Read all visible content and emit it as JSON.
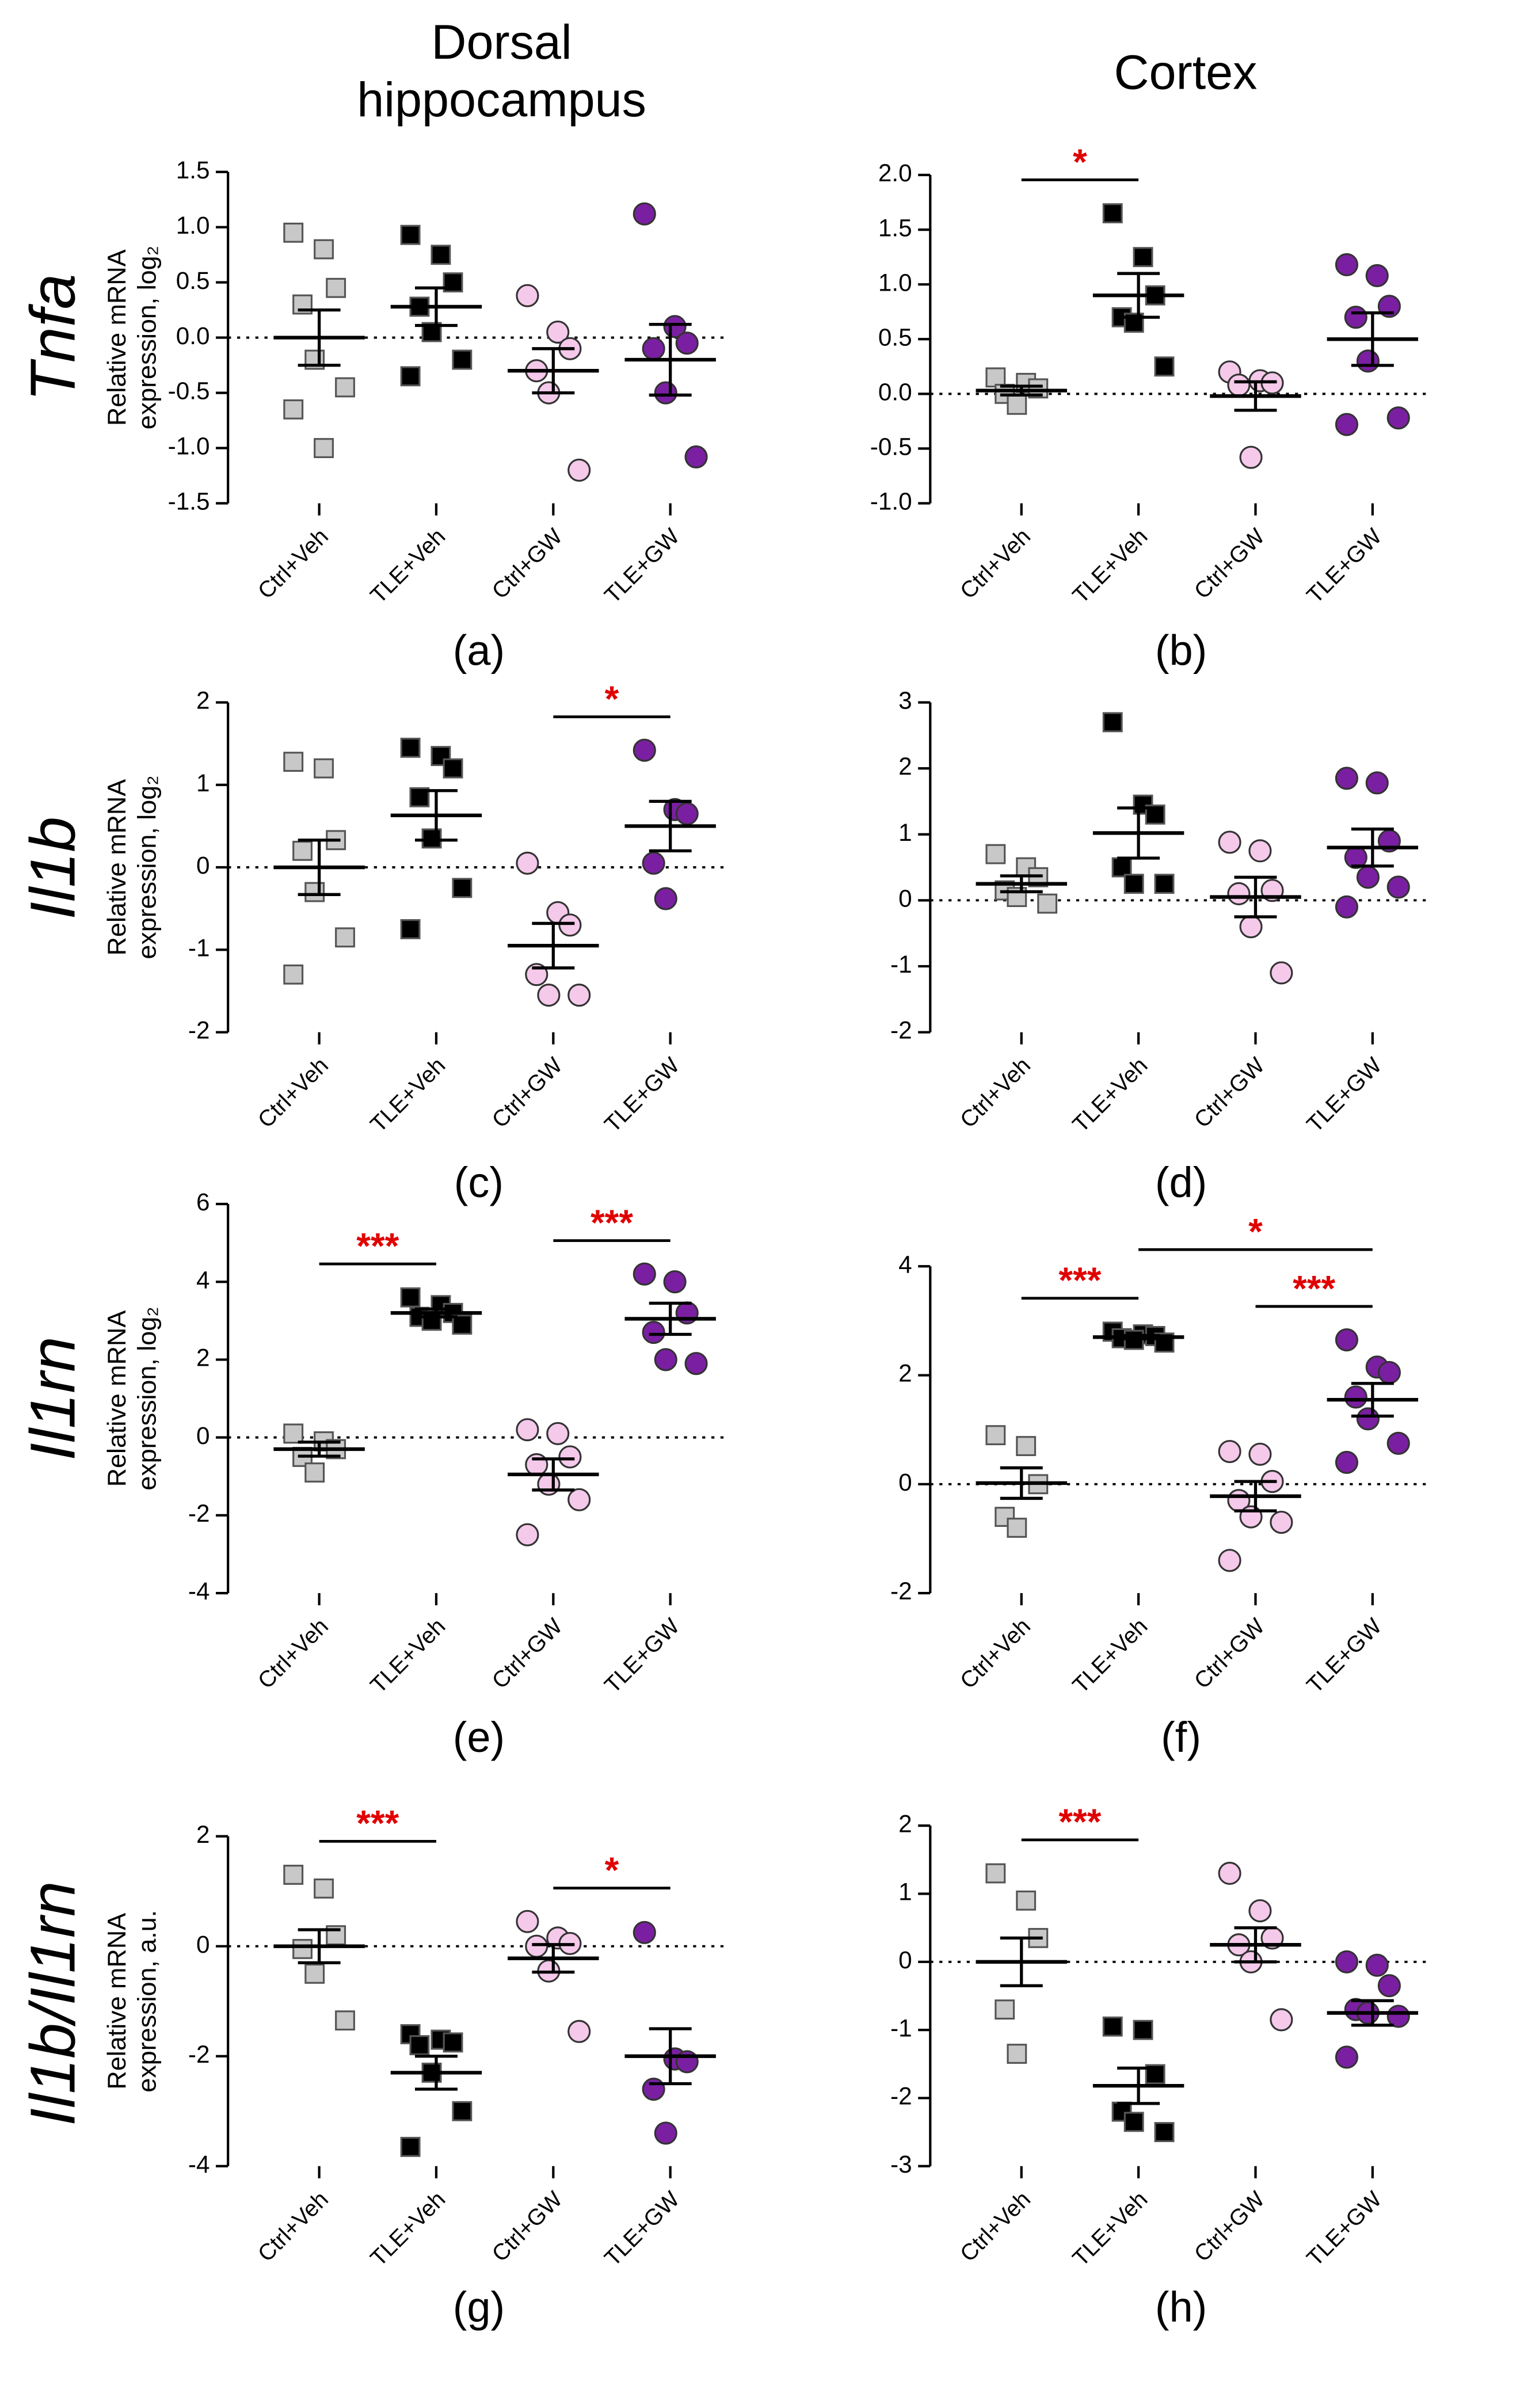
{
  "column_titles": [
    [
      "Dorsal",
      "hippocampus"
    ],
    [
      "Cortex"
    ]
  ],
  "row_labels": [
    "Tnfa",
    "Il1b",
    "Il1rn",
    "Il1b/Il1rn"
  ],
  "chart_data": [
    {
      "type": "dotplot",
      "panel_label": "(a)",
      "ylabel": [
        "Relative mRNA",
        "expression, log₂"
      ],
      "ylim": [
        -1.5,
        1.5
      ],
      "yticks": [
        -1.5,
        {
          "value": -1,
          "label": "-1.0"
        },
        -0.5,
        {
          "value": 0,
          "label": "0.0"
        },
        0.5,
        {
          "value": 1,
          "label": "1.0"
        },
        1.5
      ],
      "hline": 0,
      "series": [
        {
          "name": "Ctrl+Veh",
          "marker": "square",
          "color": "#c8c8c8",
          "values": [
            0.95,
            0.8,
            0.45,
            0.3,
            -0.2,
            -0.45,
            -0.65,
            -1.0
          ],
          "mean": 0,
          "sem": 0.25
        },
        {
          "name": "TLE+Veh",
          "marker": "square",
          "color": "#000000",
          "values": [
            0.93,
            0.75,
            0.5,
            0.28,
            0.05,
            -0.2,
            -0.35
          ],
          "mean": 0.28,
          "sem": 0.17
        },
        {
          "name": "Ctrl+GW",
          "marker": "circle",
          "color": "#f5c9ea",
          "values": [
            0.38,
            0.05,
            -0.1,
            -0.3,
            -0.5,
            -1.2
          ],
          "mean": -0.3,
          "sem": 0.2
        },
        {
          "name": "TLE+GW",
          "marker": "circle",
          "color": "#7b1fa2",
          "values": [
            1.12,
            0.1,
            -0.05,
            -0.1,
            -0.5,
            -1.08
          ],
          "mean": -0.2,
          "sem": 0.32
        }
      ],
      "annotations": []
    },
    {
      "type": "dotplot",
      "panel_label": "(b)",
      "ylim": [
        -1,
        2
      ],
      "yticks": [
        {
          "value": -1,
          "label": "-1.0"
        },
        -0.5,
        {
          "value": 0,
          "label": "0.0"
        },
        0.5,
        {
          "value": 1,
          "label": "1.0"
        },
        1.5,
        {
          "value": 2,
          "label": "2.0"
        }
      ],
      "hline": 0,
      "series": [
        {
          "name": "Ctrl+Veh",
          "marker": "square",
          "color": "#c8c8c8",
          "values": [
            0.15,
            0.1,
            0.05,
            0.0,
            -0.1
          ],
          "mean": 0.03,
          "sem": 0.04
        },
        {
          "name": "TLE+Veh",
          "marker": "square",
          "color": "#000000",
          "values": [
            1.65,
            1.25,
            0.9,
            0.7,
            0.65,
            0.25
          ],
          "mean": 0.9,
          "sem": 0.2
        },
        {
          "name": "Ctrl+GW",
          "marker": "circle",
          "color": "#f5c9ea",
          "values": [
            0.2,
            0.12,
            0.1,
            0.08,
            -0.58
          ],
          "mean": -0.02,
          "sem": 0.13
        },
        {
          "name": "TLE+GW",
          "marker": "circle",
          "color": "#7b1fa2",
          "values": [
            1.18,
            1.08,
            0.8,
            0.7,
            0.3,
            -0.22,
            -0.28
          ],
          "mean": 0.5,
          "sem": 0.24
        }
      ],
      "annotations": [
        {
          "text": "*",
          "from": 0,
          "to": 1
        }
      ]
    },
    {
      "type": "dotplot",
      "panel_label": "(c)",
      "ylabel": [
        "Relative mRNA",
        "expression, log₂"
      ],
      "ylim": [
        -2,
        2
      ],
      "yticks": [
        -2,
        -1,
        0,
        1,
        2
      ],
      "hline": 0,
      "series": [
        {
          "name": "Ctrl+Veh",
          "marker": "square",
          "color": "#c8c8c8",
          "values": [
            1.28,
            1.2,
            0.33,
            0.2,
            -0.3,
            -0.85,
            -1.3
          ],
          "mean": 0,
          "sem": 0.33
        },
        {
          "name": "TLE+Veh",
          "marker": "square",
          "color": "#000000",
          "values": [
            1.45,
            1.35,
            1.2,
            0.85,
            0.35,
            -0.25,
            -0.75
          ],
          "mean": 0.63,
          "sem": 0.3
        },
        {
          "name": "Ctrl+GW",
          "marker": "circle",
          "color": "#f5c9ea",
          "values": [
            0.05,
            -0.55,
            -0.7,
            -1.3,
            -1.55,
            -1.55
          ],
          "mean": -0.95,
          "sem": 0.27
        },
        {
          "name": "TLE+GW",
          "marker": "circle",
          "color": "#7b1fa2",
          "values": [
            1.42,
            0.7,
            0.65,
            0.05,
            -0.38
          ],
          "mean": 0.5,
          "sem": 0.3
        }
      ],
      "annotations": [
        {
          "text": "*",
          "from": 2,
          "to": 3
        }
      ]
    },
    {
      "type": "dotplot",
      "panel_label": "(d)",
      "ylim": [
        -2,
        3
      ],
      "yticks": [
        -2,
        -1,
        0,
        1,
        2,
        3
      ],
      "hline": 0,
      "series": [
        {
          "name": "Ctrl+Veh",
          "marker": "square",
          "color": "#c8c8c8",
          "values": [
            0.7,
            0.5,
            0.35,
            0.15,
            0.05,
            -0.05
          ],
          "mean": 0.25,
          "sem": 0.12
        },
        {
          "name": "TLE+Veh",
          "marker": "square",
          "color": "#000000",
          "values": [
            2.7,
            1.45,
            1.3,
            0.5,
            0.25,
            0.25
          ],
          "mean": 1.02,
          "sem": 0.38
        },
        {
          "name": "Ctrl+GW",
          "marker": "circle",
          "color": "#f5c9ea",
          "values": [
            0.88,
            0.75,
            0.15,
            0.1,
            -0.4,
            -1.1
          ],
          "mean": 0.05,
          "sem": 0.3
        },
        {
          "name": "TLE+GW",
          "marker": "circle",
          "color": "#7b1fa2",
          "values": [
            1.85,
            1.78,
            0.9,
            0.65,
            0.35,
            0.2,
            -0.1
          ],
          "mean": 0.8,
          "sem": 0.28
        }
      ],
      "annotations": []
    },
    {
      "type": "dotplot",
      "panel_label": "(e)",
      "ylabel": [
        "Relative mRNA",
        "expression, log₂"
      ],
      "ylim": [
        -4,
        6
      ],
      "yticks": [
        -4,
        -2,
        0,
        2,
        4,
        6
      ],
      "hline": 0,
      "series": [
        {
          "name": "Ctrl+Veh",
          "marker": "square",
          "color": "#c8c8c8",
          "values": [
            0.1,
            -0.1,
            -0.3,
            -0.5,
            -0.9
          ],
          "mean": -0.3,
          "sem": 0.18
        },
        {
          "name": "TLE+Veh",
          "marker": "square",
          "color": "#000000",
          "values": [
            3.6,
            3.4,
            3.2,
            3.1,
            3.0,
            2.9
          ],
          "mean": 3.2,
          "sem": 0.1
        },
        {
          "name": "Ctrl+GW",
          "marker": "circle",
          "color": "#f5c9ea",
          "values": [
            0.2,
            0.1,
            -0.5,
            -0.7,
            -1.2,
            -1.6,
            -2.5
          ],
          "mean": -0.95,
          "sem": 0.4
        },
        {
          "name": "TLE+GW",
          "marker": "circle",
          "color": "#7b1fa2",
          "values": [
            4.2,
            4.0,
            3.2,
            2.7,
            2.0,
            1.9
          ],
          "mean": 3.05,
          "sem": 0.4
        }
      ],
      "annotations": [
        {
          "text": "***",
          "from": 0,
          "to": 1
        },
        {
          "text": "***",
          "from": 2,
          "to": 3
        }
      ]
    },
    {
      "type": "dotplot",
      "panel_label": "(f)",
      "ylim": [
        -2,
        4
      ],
      "yticks": [
        -2,
        0,
        2,
        4
      ],
      "hline": 0,
      "series": [
        {
          "name": "Ctrl+Veh",
          "marker": "square",
          "color": "#c8c8c8",
          "values": [
            0.9,
            0.7,
            0.0,
            -0.6,
            -0.8
          ],
          "mean": 0.02,
          "sem": 0.28
        },
        {
          "name": "TLE+Veh",
          "marker": "square",
          "color": "#000000",
          "values": [
            2.8,
            2.75,
            2.72,
            2.68,
            2.65,
            2.6
          ],
          "mean": 2.7,
          "sem": 0.03
        },
        {
          "name": "Ctrl+GW",
          "marker": "circle",
          "color": "#f5c9ea",
          "values": [
            0.6,
            0.55,
            0.05,
            -0.3,
            -0.6,
            -0.7,
            -1.4
          ],
          "mean": -0.22,
          "sem": 0.27
        },
        {
          "name": "TLE+GW",
          "marker": "circle",
          "color": "#7b1fa2",
          "values": [
            2.65,
            2.15,
            2.05,
            1.6,
            1.2,
            0.75,
            0.4
          ],
          "mean": 1.55,
          "sem": 0.3
        }
      ],
      "annotations": [
        {
          "text": "***",
          "from": 0,
          "to": 1
        },
        {
          "text": "***",
          "from": 2,
          "to": 3
        },
        {
          "text": "*",
          "from": 1,
          "to": 3
        }
      ]
    },
    {
      "type": "dotplot",
      "panel_label": "(g)",
      "ylabel": [
        "Relative mRNA",
        "expression, a.u."
      ],
      "ylim": [
        -4,
        2
      ],
      "yticks": [
        -4,
        -2,
        0,
        2
      ],
      "hline": 0,
      "series": [
        {
          "name": "Ctrl+Veh",
          "marker": "square",
          "color": "#c8c8c8",
          "values": [
            1.3,
            1.05,
            0.2,
            -0.05,
            -0.5,
            -1.35
          ],
          "mean": 0,
          "sem": 0.3
        },
        {
          "name": "TLE+Veh",
          "marker": "square",
          "color": "#000000",
          "values": [
            -1.6,
            -1.7,
            -1.75,
            -1.8,
            -2.3,
            -3.0,
            -3.65
          ],
          "mean": -2.3,
          "sem": 0.3
        },
        {
          "name": "Ctrl+GW",
          "marker": "circle",
          "color": "#f5c9ea",
          "values": [
            0.45,
            0.15,
            0.05,
            0.0,
            -0.45,
            -1.55
          ],
          "mean": -0.22,
          "sem": 0.25
        },
        {
          "name": "TLE+GW",
          "marker": "circle",
          "color": "#7b1fa2",
          "values": [
            0.25,
            -2.05,
            -2.1,
            -2.6,
            -3.4
          ],
          "mean": -2.0,
          "sem": 0.5
        }
      ],
      "annotations": [
        {
          "text": "***",
          "from": 0,
          "to": 1
        },
        {
          "text": "*",
          "from": 2,
          "to": 3
        }
      ]
    },
    {
      "type": "dotplot",
      "panel_label": "(h)",
      "ylim": [
        -3,
        2
      ],
      "yticks": [
        -3,
        -2,
        -1,
        0,
        1,
        2
      ],
      "hline": 0,
      "series": [
        {
          "name": "Ctrl+Veh",
          "marker": "square",
          "color": "#c8c8c8",
          "values": [
            1.3,
            0.9,
            0.35,
            -0.7,
            -1.35
          ],
          "mean": 0,
          "sem": 0.35
        },
        {
          "name": "TLE+Veh",
          "marker": "square",
          "color": "#000000",
          "values": [
            -0.95,
            -1.0,
            -1.65,
            -2.2,
            -2.35,
            -2.5
          ],
          "mean": -1.82,
          "sem": 0.26
        },
        {
          "name": "Ctrl+GW",
          "marker": "circle",
          "color": "#f5c9ea",
          "values": [
            1.3,
            0.75,
            0.35,
            0.25,
            0.0,
            -0.85
          ],
          "mean": 0.25,
          "sem": 0.25
        },
        {
          "name": "TLE+GW",
          "marker": "circle",
          "color": "#7b1fa2",
          "values": [
            0.0,
            -0.05,
            -0.35,
            -0.7,
            -0.75,
            -0.8,
            -1.4
          ],
          "mean": -0.75,
          "sem": 0.18
        }
      ],
      "annotations": [
        {
          "text": "***",
          "from": 0,
          "to": 1
        }
      ]
    }
  ]
}
